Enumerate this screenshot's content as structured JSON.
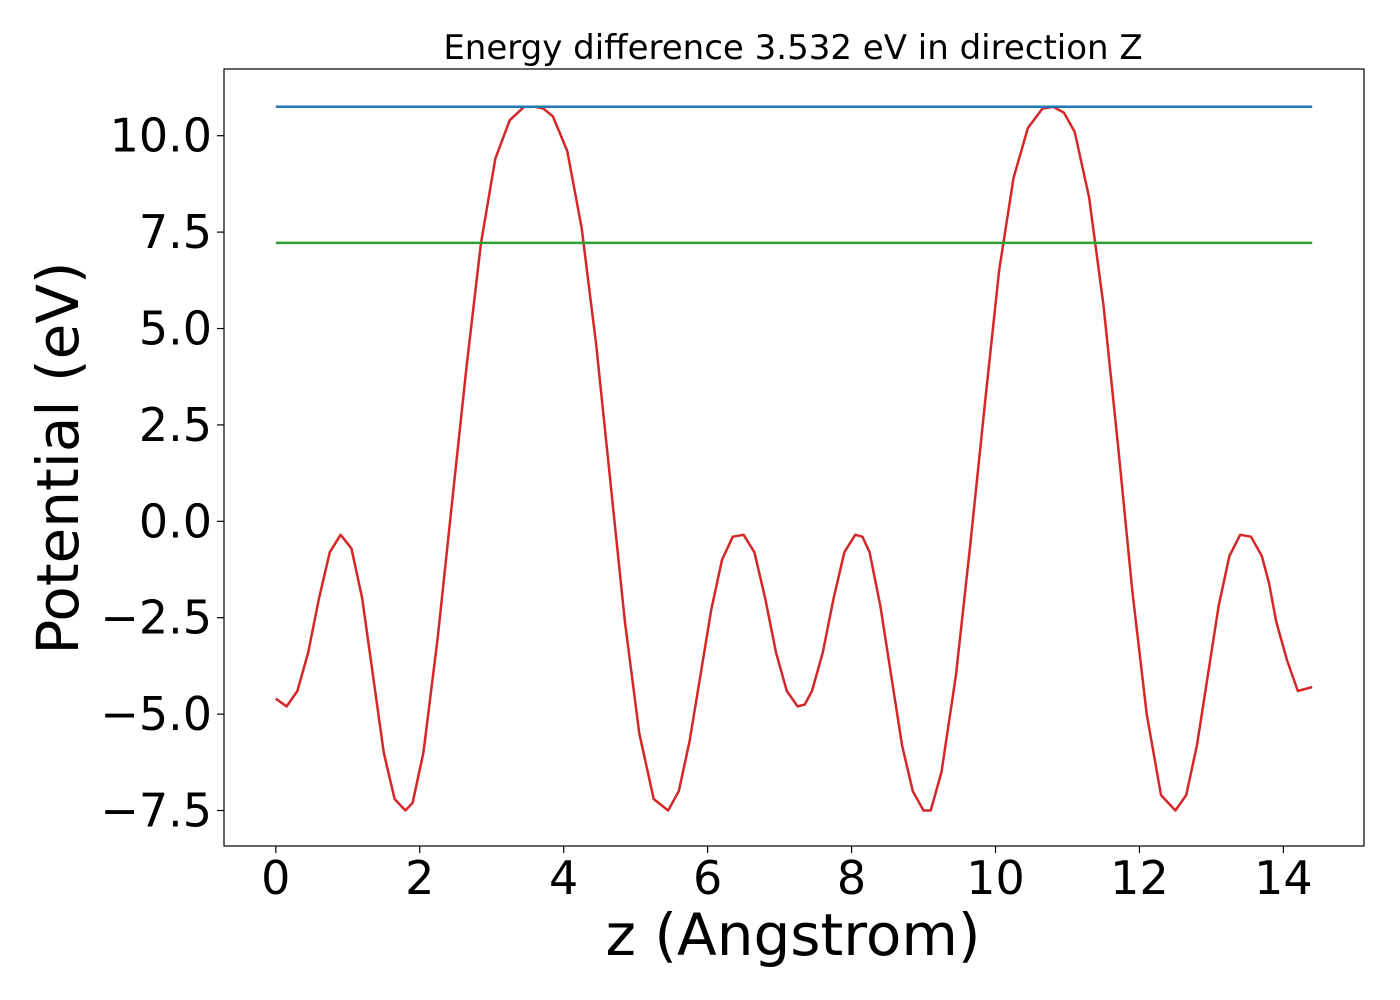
{
  "chart_data": {
    "type": "line",
    "title": "Energy difference 3.532 eV in direction Z",
    "xlabel": "z (Angstrom)",
    "ylabel": "Potential (eV)",
    "xlim": [
      -0.72,
      15.12
    ],
    "ylim": [
      -8.42,
      11.73
    ],
    "xticks": [
      0,
      2,
      4,
      6,
      8,
      10,
      12,
      14
    ],
    "xtick_labels": [
      "0",
      "2",
      "4",
      "6",
      "8",
      "10",
      "12",
      "14"
    ],
    "yticks": [
      -7.5,
      -5.0,
      -2.5,
      0.0,
      2.5,
      5.0,
      7.5,
      10.0
    ],
    "ytick_labels": [
      "−7.5",
      "−5.0",
      "−2.5",
      "0.0",
      "2.5",
      "5.0",
      "7.5",
      "10.0"
    ],
    "grid": false,
    "legend": false,
    "series": [
      {
        "color": "#d62728",
        "x": [
          0,
          0.15,
          0.3,
          0.45,
          0.6,
          0.75,
          0.9,
          1.05,
          1.2,
          1.35,
          1.5,
          1.65,
          1.8,
          1.9,
          2.05,
          2.25,
          2.45,
          2.65,
          2.85,
          3.05,
          3.25,
          3.45,
          3.6,
          3.72,
          3.85,
          4.05,
          4.25,
          4.45,
          4.65,
          4.85,
          5.05,
          5.25,
          5.45,
          5.6,
          5.75,
          5.9,
          6.05,
          6.2,
          6.35,
          6.5,
          6.65,
          6.8,
          6.95,
          7.1,
          7.25,
          7.35,
          7.45,
          7.6,
          7.75,
          7.9,
          8.05,
          8.15,
          8.25,
          8.4,
          8.55,
          8.7,
          8.85,
          9.0,
          9.1,
          9.25,
          9.45,
          9.65,
          9.85,
          10.05,
          10.25,
          10.45,
          10.65,
          10.8,
          10.95,
          11.1,
          11.3,
          11.5,
          11.7,
          11.9,
          12.1,
          12.3,
          12.5,
          12.65,
          12.8,
          12.95,
          13.1,
          13.25,
          13.4,
          13.55,
          13.7,
          13.8,
          13.9,
          14.05,
          14.2,
          14.4
        ],
        "y": [
          -4.6,
          -4.8,
          -4.4,
          -3.4,
          -2.0,
          -0.8,
          -0.35,
          -0.7,
          -2.0,
          -4.0,
          -6.0,
          -7.2,
          -7.5,
          -7.3,
          -6.0,
          -3.0,
          0.5,
          4.0,
          7.2,
          9.4,
          10.4,
          10.75,
          10.75,
          10.7,
          10.5,
          9.6,
          7.6,
          4.6,
          1.0,
          -2.6,
          -5.5,
          -7.2,
          -7.5,
          -7.0,
          -5.7,
          -4.0,
          -2.3,
          -1.0,
          -0.4,
          -0.35,
          -0.8,
          -2.0,
          -3.4,
          -4.4,
          -4.8,
          -4.75,
          -4.4,
          -3.4,
          -2.0,
          -0.8,
          -0.35,
          -0.4,
          -0.8,
          -2.2,
          -4.0,
          -5.8,
          -7.0,
          -7.5,
          -7.5,
          -6.5,
          -4.0,
          -0.6,
          3.0,
          6.5,
          8.9,
          10.2,
          10.7,
          10.75,
          10.6,
          10.1,
          8.4,
          5.6,
          2.0,
          -1.8,
          -5.0,
          -7.1,
          -7.5,
          -7.1,
          -5.8,
          -4.0,
          -2.2,
          -0.9,
          -0.35,
          -0.4,
          -0.9,
          -1.6,
          -2.6,
          -3.6,
          -4.4,
          -4.3
        ]
      },
      {
        "color": "#1f77b4",
        "x": [
          0,
          14.4
        ],
        "y": [
          10.75,
          10.75
        ]
      },
      {
        "color": "#2ca02c",
        "x": [
          0,
          14.4
        ],
        "y": [
          7.22,
          7.22
        ]
      }
    ]
  }
}
